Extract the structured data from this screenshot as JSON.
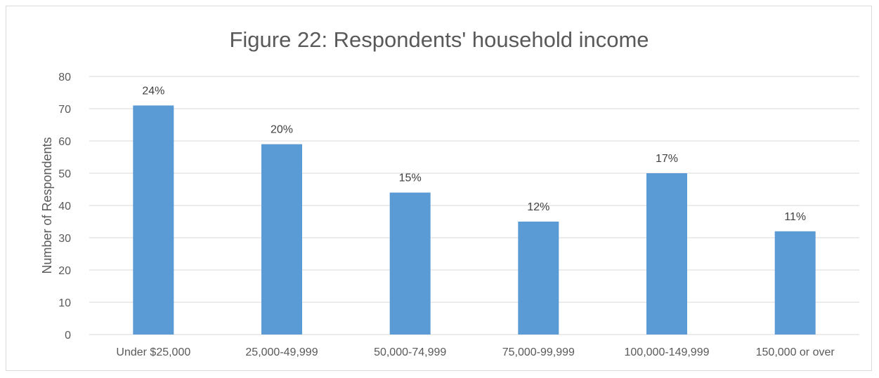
{
  "chart_data": {
    "type": "bar",
    "title": "Figure 22: Respondents' household income",
    "xlabel": "",
    "ylabel": "Number of Respondents",
    "ylim": [
      0,
      80
    ],
    "yticks": [
      0,
      10,
      20,
      30,
      40,
      50,
      60,
      70,
      80
    ],
    "grid": true,
    "legend": "none",
    "categories": [
      "Under $25,000",
      "25,000-49,999",
      "50,000-74,999",
      "75,000-99,999",
      "100,000-149,999",
      "150,000 or over"
    ],
    "values": [
      71,
      59,
      44,
      35,
      50,
      32
    ],
    "data_labels": [
      "24%",
      "20%",
      "15%",
      "12%",
      "17%",
      "11%"
    ],
    "colors": {
      "bar": "#5b9bd5",
      "grid": "#d9d9d9",
      "text": "#595959"
    }
  }
}
